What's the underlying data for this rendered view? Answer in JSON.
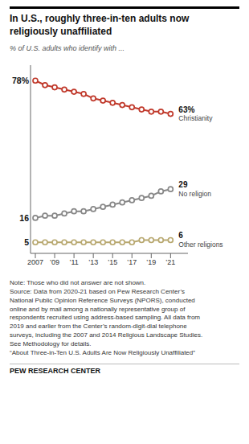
{
  "chart_data": {
    "type": "line",
    "title": "In U.S., roughly three-in-ten adults now\nreligiously unaffiliated",
    "subtitle": "% of U.S. adults who identify with ...",
    "x": [
      2007,
      2008,
      2009,
      2010,
      2011,
      2012,
      2013,
      2014,
      2015,
      2016,
      2017,
      2018,
      2019,
      2020,
      2021
    ],
    "series": [
      {
        "name": "Christianity",
        "color": "#c0392b",
        "marker": "circle",
        "values": [
          78,
          76,
          75,
          74,
          73,
          72,
          70,
          69,
          68,
          67,
          66,
          65,
          64,
          64,
          63
        ],
        "value_labels": [
          "78%",
          null,
          null,
          null,
          null,
          null,
          null,
          null,
          null,
          null,
          null,
          null,
          null,
          null,
          "63%"
        ]
      },
      {
        "name": "No religion",
        "color": "#888888",
        "marker": "circle",
        "values": [
          16,
          17,
          17,
          18,
          19,
          19,
          20,
          21,
          22,
          23,
          24,
          25,
          26,
          28,
          29
        ],
        "value_labels": [
          "16",
          null,
          null,
          null,
          null,
          null,
          null,
          null,
          null,
          null,
          null,
          null,
          null,
          null,
          "29"
        ]
      },
      {
        "name": "Other religions",
        "color": "#b8a870",
        "marker": "circle",
        "values": [
          5,
          5,
          5,
          5,
          5,
          5,
          5,
          5,
          5,
          5,
          5,
          6,
          6,
          6,
          6
        ],
        "value_labels": [
          "5",
          null,
          null,
          null,
          null,
          null,
          null,
          null,
          null,
          null,
          null,
          null,
          null,
          null,
          "6"
        ]
      }
    ],
    "xlim": [
      2006.5,
      2022.8
    ],
    "ylim": [
      0,
      85
    ],
    "xticks": [
      2007,
      {
        "value": 2009,
        "label": "’09"
      },
      {
        "value": 2011,
        "label": "’11"
      },
      {
        "value": 2013,
        "label": "’13"
      },
      {
        "value": 2015,
        "label": "’15"
      },
      {
        "value": 2017,
        "label": "’17"
      },
      {
        "value": 2019,
        "label": "’19"
      },
      {
        "value": 2021,
        "label": "’21"
      }
    ],
    "tick_labels": "x",
    "grid": false,
    "notes": [
      "Note: Those who did not answer are not shown.",
      "Source: Data from 2020-21 based on Pew Research Center’s",
      "National Public Opinion Reference Surveys (NPORS), conducted",
      "online and by mail among a nationally representative group of",
      "respondents recruited using address-based sampling. All data from",
      "2019 and earlier from the Center’s random-digit-dial telephone",
      "surveys, including the 2007 and 2014 Religious Landscape Studies.",
      "See Methodology for details.",
      "“About Three-in-Ten U.S. Adults Are Now Religiously Unaffiliated”"
    ],
    "footer": "PEW RESEARCH CENTER"
  }
}
